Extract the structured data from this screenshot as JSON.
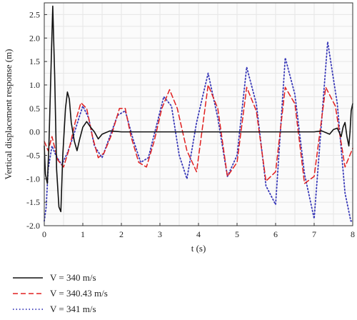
{
  "chart_data": {
    "type": "line",
    "title": "",
    "xlabel": "t (s)",
    "ylabel": "Vertical displacement response (m)",
    "xlim": [
      0,
      8
    ],
    "ylim": [
      -2.0,
      2.75
    ],
    "xticks": [
      0,
      1,
      2,
      3,
      4,
      5,
      6,
      7,
      8
    ],
    "yticks": [
      -2.0,
      -1.5,
      -1.0,
      -0.5,
      0.0,
      0.5,
      1.0,
      1.5,
      2.0,
      2.5
    ],
    "xtick_labels": [
      "0",
      "1",
      "2",
      "3",
      "4",
      "5",
      "6",
      "7",
      "8"
    ],
    "ytick_labels": [
      "-2.0",
      "-1.5",
      "-1.0",
      "-0.5",
      "0.0",
      "0.5",
      "1.0",
      "1.5",
      "2.0",
      "2.5"
    ],
    "grid": true,
    "legend_position": "bottom",
    "series": [
      {
        "name": "V = 340 m/s",
        "color": "#111111",
        "style": "solid",
        "x": [
          0,
          0.03,
          0.08,
          0.12,
          0.18,
          0.22,
          0.27,
          0.32,
          0.38,
          0.43,
          0.48,
          0.55,
          0.6,
          0.65,
          0.7,
          0.78,
          0.85,
          0.92,
          1.0,
          1.1,
          1.2,
          1.3,
          1.4,
          1.5,
          1.7,
          2.0,
          2.5,
          3.0,
          3.5,
          4.0,
          4.5,
          5.0,
          5.5,
          6.0,
          6.5,
          7.0,
          7.2,
          7.4,
          7.5,
          7.6,
          7.7,
          7.75,
          7.8,
          7.85,
          7.9,
          7.93,
          7.96,
          8.0
        ],
        "y": [
          -0.3,
          -0.9,
          -1.1,
          -0.3,
          1.5,
          2.68,
          1.2,
          -0.8,
          -1.6,
          -1.7,
          -0.5,
          0.5,
          0.85,
          0.7,
          0.2,
          -0.2,
          -0.4,
          -0.15,
          0.1,
          0.22,
          0.1,
          0.0,
          -0.15,
          -0.05,
          0.02,
          0.0,
          0.0,
          0.0,
          0.0,
          0.0,
          0.0,
          0.0,
          0.0,
          0.0,
          0.0,
          0.0,
          0.02,
          -0.05,
          0.05,
          0.08,
          -0.1,
          0.1,
          0.2,
          -0.1,
          -0.3,
          0.0,
          0.45,
          0.6
        ]
      },
      {
        "name": "V = 340.43 m/s",
        "color": "#e02020",
        "style": "dashed",
        "x": [
          0,
          0.1,
          0.2,
          0.35,
          0.5,
          0.65,
          0.8,
          0.95,
          1.1,
          1.25,
          1.4,
          1.55,
          1.75,
          1.95,
          2.1,
          2.25,
          2.45,
          2.65,
          2.85,
          3.05,
          3.25,
          3.45,
          3.7,
          3.95,
          4.25,
          4.5,
          4.75,
          5.0,
          5.25,
          5.5,
          5.75,
          6.0,
          6.25,
          6.5,
          6.75,
          7.0,
          7.3,
          7.55,
          7.8,
          8.0
        ],
        "y": [
          -0.2,
          -0.4,
          -0.1,
          -0.6,
          -0.75,
          -0.35,
          0.2,
          0.62,
          0.5,
          -0.1,
          -0.55,
          -0.45,
          -0.05,
          0.5,
          0.5,
          -0.1,
          -0.65,
          -0.75,
          -0.2,
          0.5,
          0.9,
          0.5,
          -0.4,
          -0.85,
          1.0,
          0.5,
          -0.95,
          -0.65,
          0.95,
          0.45,
          -1.05,
          -0.85,
          0.95,
          0.6,
          -1.1,
          -0.95,
          0.95,
          0.55,
          -0.75,
          -0.35
        ]
      },
      {
        "name": "V = 341 m/s",
        "color": "#3a3ab8",
        "style": "dotted",
        "x": [
          0,
          0.05,
          0.1,
          0.2,
          0.3,
          0.45,
          0.6,
          0.75,
          0.9,
          1.0,
          1.15,
          1.3,
          1.5,
          1.7,
          1.9,
          2.1,
          2.3,
          2.5,
          2.7,
          2.9,
          3.1,
          3.3,
          3.5,
          3.7,
          3.95,
          4.25,
          4.5,
          4.75,
          5.0,
          5.25,
          5.5,
          5.75,
          6.0,
          6.25,
          6.5,
          6.75,
          7.0,
          7.35,
          7.6,
          7.8,
          7.95,
          8.0
        ],
        "y": [
          -1.9,
          -1.6,
          -0.8,
          -0.3,
          -0.5,
          -0.7,
          -0.45,
          -0.1,
          0.3,
          0.55,
          0.3,
          -0.3,
          -0.55,
          -0.1,
          0.35,
          0.45,
          -0.15,
          -0.65,
          -0.55,
          0.1,
          0.75,
          0.55,
          -0.5,
          -1.0,
          0.2,
          1.25,
          0.3,
          -0.95,
          -0.5,
          1.38,
          0.6,
          -1.15,
          -1.55,
          1.58,
          0.8,
          -0.9,
          -1.85,
          1.92,
          0.6,
          -1.3,
          -1.9,
          -1.9
        ]
      }
    ]
  }
}
